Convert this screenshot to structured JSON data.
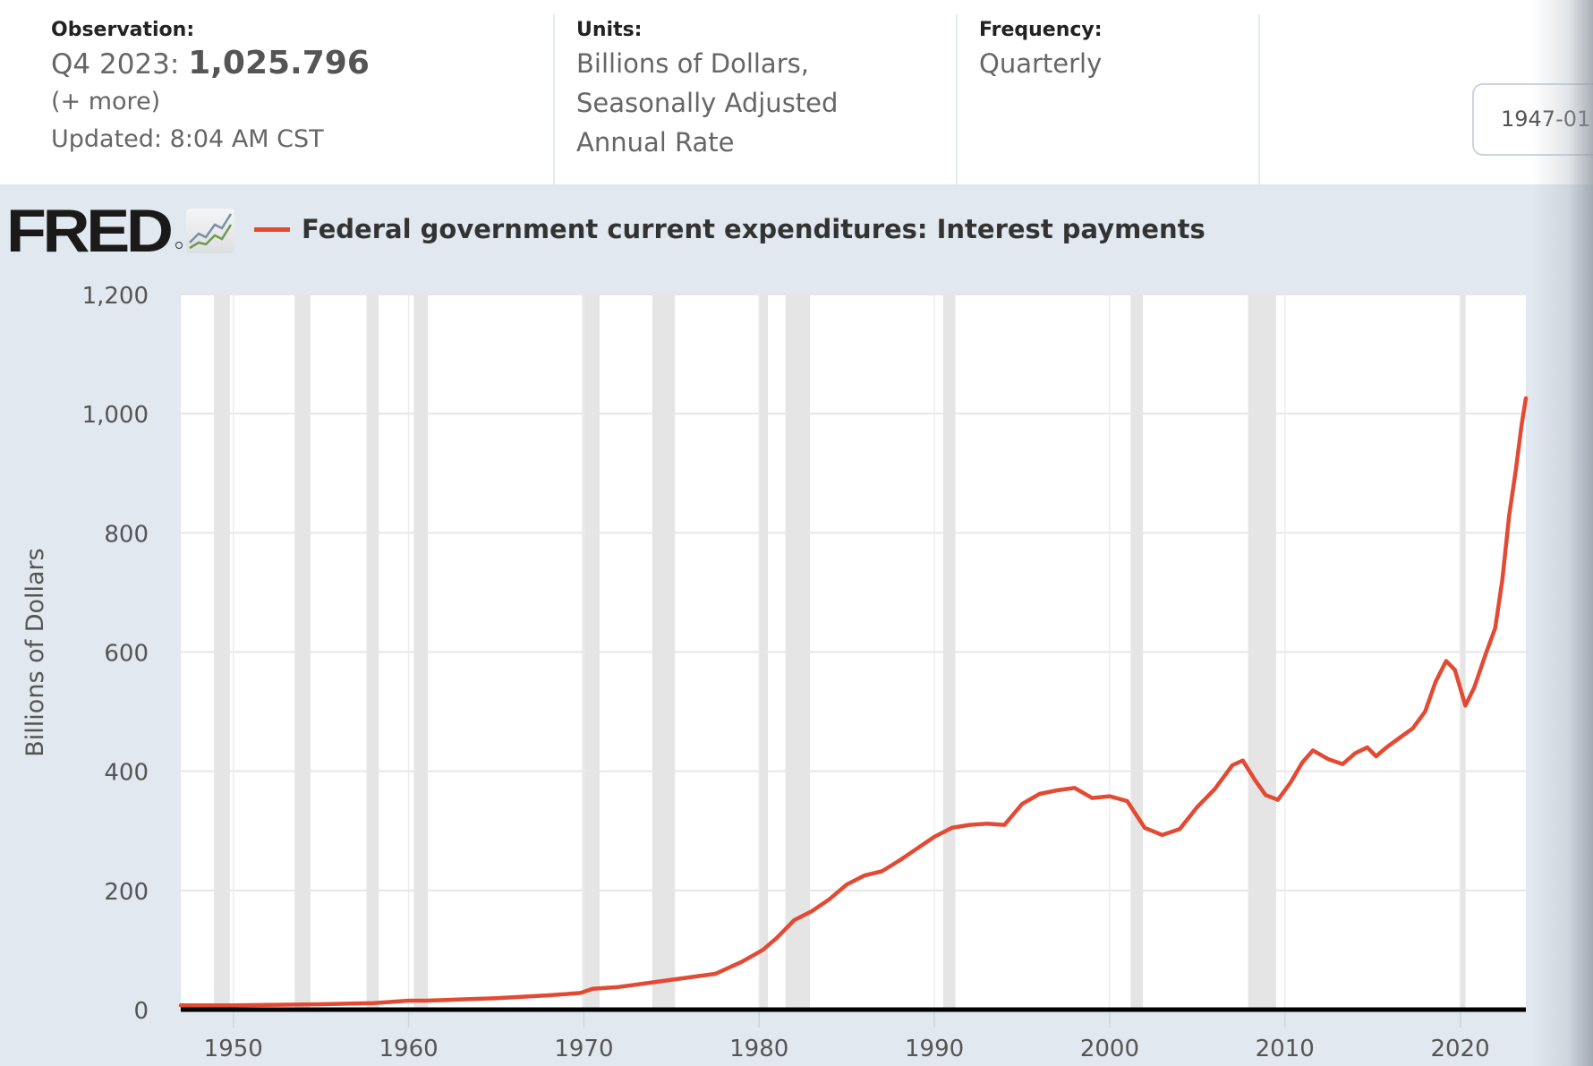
{
  "meta": {
    "observation": {
      "label": "Observation:",
      "period": "Q4 2023:",
      "value": "1,025.796",
      "more_link": "(+ more)",
      "updated": "Updated: 8:04 AM CST"
    },
    "units": {
      "label": "Units:",
      "lines": [
        "Billions of Dollars,",
        "Seasonally Adjusted",
        "Annual Rate"
      ]
    },
    "frequency": {
      "label": "Frequency:",
      "value": "Quarterly"
    },
    "date_range_start": "1947-01"
  },
  "header": {
    "logo_text": "FRED",
    "series_color": "#e34a33"
  },
  "chart_data": {
    "type": "line",
    "title": "Federal government current expenditures: Interest payments",
    "xlabel": "",
    "ylabel": "Billions of Dollars",
    "xlim": [
      1947,
      2023.75
    ],
    "ylim": [
      0,
      1200
    ],
    "grid": true,
    "legend": "top-left",
    "y_ticks": [
      0,
      200,
      400,
      600,
      800,
      1000,
      1200
    ],
    "y_tick_labels": [
      "0",
      "200",
      "400",
      "600",
      "800",
      "1,000",
      "1,200"
    ],
    "x_ticks": [
      1950,
      1960,
      1970,
      1980,
      1990,
      2000,
      2010,
      2020
    ],
    "x_tick_labels": [
      "1950",
      "1960",
      "1970",
      "1980",
      "1990",
      "2000",
      "2010",
      "2020"
    ],
    "recessions": [
      [
        1948.9,
        1949.8
      ],
      [
        1953.5,
        1954.4
      ],
      [
        1957.6,
        1958.3
      ],
      [
        1960.3,
        1961.1
      ],
      [
        1969.9,
        1970.9
      ],
      [
        1973.9,
        1975.2
      ],
      [
        1980.0,
        1980.5
      ],
      [
        1981.5,
        1982.9
      ],
      [
        1990.5,
        1991.2
      ],
      [
        2001.2,
        2001.9
      ],
      [
        2007.9,
        2009.5
      ],
      [
        2020.0,
        2020.3
      ]
    ],
    "series": [
      {
        "name": "Federal government current expenditures: Interest payments",
        "color": "#e34a33",
        "x": [
          1947,
          1950,
          1955,
          1958,
          1960,
          1961,
          1965,
          1968,
          1969.8,
          1970.5,
          1972,
          1974,
          1976,
          1977.5,
          1979,
          1980.2,
          1981,
          1982,
          1983,
          1984,
          1985,
          1986,
          1987,
          1988,
          1989,
          1990,
          1991,
          1992,
          1993,
          1994,
          1995,
          1996,
          1997,
          1998,
          1999,
          2000,
          2001,
          2002,
          2003,
          2004,
          2005,
          2006,
          2007,
          2007.6,
          2008.3,
          2008.9,
          2009.6,
          2010.3,
          2011,
          2011.6,
          2012.5,
          2013.3,
          2014,
          2014.7,
          2015.2,
          2015.8,
          2016.5,
          2017.3,
          2018,
          2018.6,
          2019.2,
          2019.7,
          2020.3,
          2020.8,
          2021.5,
          2022,
          2022.4,
          2022.8,
          2023.2,
          2023.5,
          2023.75
        ],
        "values": [
          7,
          7,
          9,
          11,
          15,
          15,
          19,
          24,
          28,
          35,
          38,
          46,
          54,
          60,
          80,
          100,
          120,
          150,
          165,
          185,
          210,
          225,
          232,
          250,
          270,
          290,
          305,
          310,
          312,
          310,
          345,
          362,
          368,
          372,
          355,
          358,
          350,
          305,
          293,
          303,
          340,
          370,
          410,
          418,
          385,
          360,
          352,
          380,
          415,
          435,
          420,
          412,
          430,
          440,
          425,
          440,
          455,
          472,
          500,
          550,
          585,
          570,
          510,
          540,
          600,
          640,
          720,
          830,
          910,
          980,
          1025.796
        ]
      }
    ]
  }
}
